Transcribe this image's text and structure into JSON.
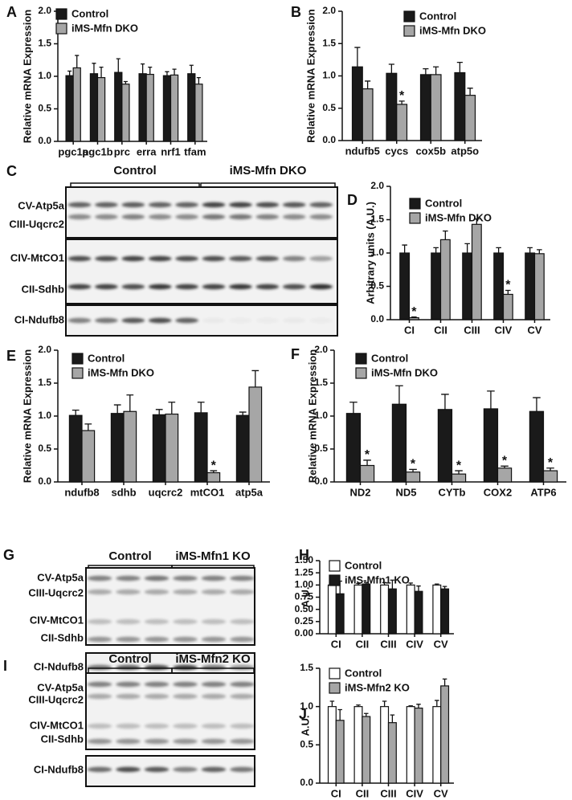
{
  "chart_data": [
    {
      "type": "bar",
      "panel_label": "A",
      "y_label": "Relative mRNA Expression",
      "legend": "upper left",
      "categories": [
        "pgc1a",
        "pgc1b",
        "prc",
        "erra",
        "nrf1",
        "tfam"
      ],
      "series": [
        {
          "name": "Control",
          "color": "#1a1a1a",
          "values": [
            1.01,
            1.04,
            1.06,
            1.04,
            1.01,
            1.04
          ],
          "errors": [
            0.07,
            0.16,
            0.21,
            0.15,
            0.06,
            0.13
          ]
        },
        {
          "name": "iMS-Mfn DKO",
          "color": "#a6a6a6",
          "values": [
            1.13,
            0.98,
            0.88,
            1.03,
            1.02,
            0.88
          ],
          "errors": [
            0.19,
            0.16,
            0.04,
            0.11,
            0.09,
            0.1
          ]
        }
      ],
      "ylim": [
        0,
        2
      ],
      "yticks": [
        {
          "value": 0,
          "label": "0.0"
        },
        0.5,
        {
          "value": 1,
          "label": "1.0"
        },
        1.5,
        {
          "value": 2,
          "label": "2.0"
        }
      ]
    },
    {
      "type": "bar",
      "panel_label": "B",
      "y_label": "Relative mRNA Expression",
      "legend": "upper left",
      "categories": [
        "ndufb5",
        "cycs",
        "cox5b",
        "atp5o"
      ],
      "series": [
        {
          "name": "Control",
          "color": "#1a1a1a",
          "values": [
            1.14,
            1.04,
            1.02,
            1.05
          ],
          "errors": [
            0.3,
            0.14,
            0.09,
            0.16
          ]
        },
        {
          "name": "iMS-Mfn DKO",
          "color": "#a6a6a6",
          "values": [
            0.8,
            0.56,
            1.02,
            0.7
          ],
          "errors": [
            0.12,
            0.05,
            0.12,
            0.11
          ],
          "markers": [
            null,
            "*",
            null,
            null
          ]
        }
      ],
      "ylim": [
        0,
        2
      ],
      "yticks": [
        {
          "value": 0,
          "label": "0.0"
        },
        0.5,
        {
          "value": 1,
          "label": "1.0"
        },
        1.5,
        {
          "value": 2,
          "label": "2.0"
        }
      ]
    },
    {
      "type": "bar",
      "panel_label": "D",
      "y_label": "Arbitrary units (A.U.)",
      "legend": "upper left",
      "categories": [
        "CI",
        "CII",
        "CIII",
        "CIV",
        "CV"
      ],
      "series": [
        {
          "name": "Control",
          "color": "#1a1a1a",
          "values": [
            1.0,
            1.0,
            1.0,
            1.0,
            1.0
          ],
          "errors": [
            0.12,
            0.08,
            0.14,
            0.08,
            0.08
          ]
        },
        {
          "name": "iMS-Mfn DKO",
          "color": "#a6a6a6",
          "values": [
            0.03,
            1.2,
            1.43,
            0.38,
            0.99
          ],
          "errors": [
            0.01,
            0.13,
            0.08,
            0.06,
            0.06
          ],
          "markers": [
            "*",
            null,
            null,
            "*",
            null
          ]
        }
      ],
      "ylim": [
        0,
        2
      ],
      "yticks": [
        {
          "value": 0,
          "label": "0.0"
        },
        0.5,
        {
          "value": 1,
          "label": "1.0"
        },
        1.5,
        {
          "value": 2,
          "label": "2.0"
        }
      ]
    },
    {
      "type": "bar",
      "panel_label": "E",
      "y_label": "Relative mRNA Expression",
      "legend": "upper left",
      "categories": [
        "ndufb8",
        "sdhb",
        "uqcrc2",
        "mtCO1",
        "atp5a"
      ],
      "series": [
        {
          "name": "Control",
          "color": "#1a1a1a",
          "values": [
            1.01,
            1.04,
            1.02,
            1.05,
            1.01
          ],
          "errors": [
            0.08,
            0.13,
            0.08,
            0.16,
            0.05
          ]
        },
        {
          "name": "iMS-Mfn DKO",
          "color": "#a6a6a6",
          "values": [
            0.78,
            1.07,
            1.03,
            0.14,
            1.44
          ],
          "errors": [
            0.1,
            0.25,
            0.18,
            0.03,
            0.25
          ],
          "markers": [
            null,
            null,
            null,
            "*",
            null
          ]
        }
      ],
      "ylim": [
        0,
        2
      ],
      "yticks": [
        {
          "value": 0,
          "label": "0.0"
        },
        0.5,
        {
          "value": 1,
          "label": "1.0"
        },
        1.5,
        {
          "value": 2,
          "label": "2.0"
        }
      ]
    },
    {
      "type": "bar",
      "panel_label": "F",
      "y_label": "Relative mRNA Expression",
      "legend": "upper left",
      "categories": [
        "ND2",
        "ND5",
        "CYTb",
        "COX2",
        "ATP6"
      ],
      "series": [
        {
          "name": "Control",
          "color": "#1a1a1a",
          "values": [
            1.04,
            1.18,
            1.1,
            1.11,
            1.07
          ],
          "errors": [
            0.17,
            0.28,
            0.23,
            0.27,
            0.21
          ]
        },
        {
          "name": "iMS-Mfn DKO",
          "color": "#a6a6a6",
          "values": [
            0.25,
            0.15,
            0.12,
            0.21,
            0.17
          ],
          "errors": [
            0.08,
            0.04,
            0.05,
            0.03,
            0.04
          ],
          "markers": [
            "*",
            "*",
            "*",
            "*",
            "*"
          ]
        }
      ],
      "ylim": [
        0,
        2
      ],
      "yticks": [
        {
          "value": 0,
          "label": "0.0"
        },
        0.5,
        {
          "value": 1,
          "label": "1.0"
        },
        1.5,
        {
          "value": 2,
          "label": "2.0"
        }
      ]
    },
    {
      "type": "bar",
      "panel_label": "H",
      "y_label": "A.U.",
      "legend": "upper left",
      "categories": [
        "CI",
        "CII",
        "CIII",
        "CIV",
        "CV"
      ],
      "series": [
        {
          "name": "Control",
          "color": "#ffffff",
          "values": [
            1.0,
            1.0,
            1.0,
            1.0,
            1.0
          ],
          "errors": [
            0.13,
            0.03,
            0.05,
            0.04,
            0.02
          ]
        },
        {
          "name": "iMS-Mfn1 KO",
          "color": "#1a1a1a",
          "values": [
            0.82,
            1.02,
            0.92,
            0.87,
            0.92
          ],
          "errors": [
            0.26,
            0.03,
            0.18,
            0.11,
            0.05
          ]
        }
      ],
      "ylim": [
        0,
        1.5
      ],
      "yticks": [
        {
          "value": 0,
          "label": "0.00"
        },
        0.25,
        {
          "value": 0.5,
          "label": "0.50"
        },
        0.75,
        {
          "value": 1,
          "label": "1.00"
        },
        1.25,
        {
          "value": 1.5,
          "label": "1.50"
        }
      ]
    },
    {
      "type": "bar",
      "panel_label": "J",
      "y_label": "A.U.",
      "legend": "upper left",
      "categories": [
        "CI",
        "CII",
        "CIII",
        "CIV",
        "CV"
      ],
      "series": [
        {
          "name": "Control",
          "color": "#ffffff",
          "values": [
            1.0,
            1.0,
            1.0,
            1.0,
            1.0
          ],
          "errors": [
            0.07,
            0.02,
            0.07,
            0.01,
            0.08
          ]
        },
        {
          "name": "iMS-Mfn2 KO",
          "color": "#a6a6a6",
          "values": [
            0.82,
            0.87,
            0.79,
            0.98,
            1.27
          ],
          "errors": [
            0.14,
            0.04,
            0.1,
            0.05,
            0.09
          ]
        }
      ],
      "ylim": [
        0,
        1.5
      ],
      "yticks": [
        {
          "value": 0,
          "label": "0.0"
        },
        0.5,
        {
          "value": 1,
          "label": "1.0"
        },
        1.5
      ]
    }
  ],
  "blots": [
    {
      "panel_label": "C",
      "groups": [
        "Control",
        "iMS-Mfn DKO"
      ],
      "bands": [
        "CV-Atp5a",
        "CIII-Uqcrc2",
        "CIV-MtCO1",
        "CII-Sdhb",
        "CI-Ndufb8"
      ]
    },
    {
      "panel_label": "G",
      "groups": [
        "Control",
        "iMS-Mfn1 KO"
      ],
      "bands": [
        "CV-Atp5a",
        "CIII-Uqcrc2",
        "CIV-MtCO1",
        "CII-Sdhb",
        "CI-Ndufb8"
      ]
    },
    {
      "panel_label": "I",
      "groups": [
        "Control",
        "iMS-Mfn2 KO"
      ],
      "bands": [
        "CV-Atp5a",
        "CIII-Uqcrc2",
        "CIV-MtCO1",
        "CII-Sdhb",
        "CI-Ndufb8"
      ]
    }
  ]
}
